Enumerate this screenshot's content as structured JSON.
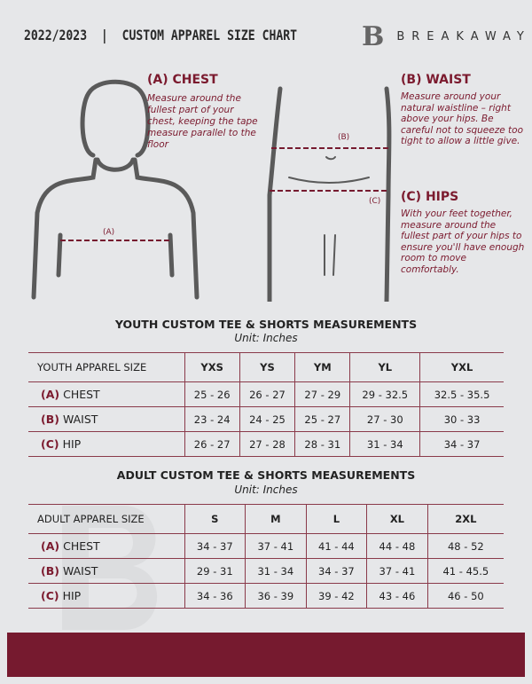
{
  "header": {
    "title": "2022/2023  |  CUSTOM APPAREL SIZE CHART",
    "brand": "BREAKAWAY",
    "logo_letter": "B"
  },
  "chest": {
    "title": "(A) CHEST",
    "text": "Measure around the fullest part of your chest, keeping the tape measure parallel to the floor",
    "marker": "(A)"
  },
  "waist": {
    "title": "(B) WAIST",
    "text": "Measure around your natural waistline – right above your hips. Be careful not to squeeze too tight to allow a little give.",
    "marker": "(B)"
  },
  "hips": {
    "title": "(C) HIPS",
    "text": "With your feet together, measure around the fullest part of your hips to ensure you'll have enough room to move comfortably.",
    "marker": "(C)"
  },
  "colors": {
    "accent": "#761a2f",
    "background": "#e6e7e9"
  },
  "youth": {
    "title": "YOUTH CUSTOM TEE & SHORTS MEASUREMENTS",
    "unit": "Unit: Inches",
    "header": "YOUTH APPAREL SIZE",
    "sizes": [
      "YXS",
      "YS",
      "YM",
      "YL",
      "YXL"
    ],
    "rows": [
      {
        "tag": "(A)",
        "label": "CHEST",
        "values": [
          "25 - 26",
          "26 - 27",
          "27 - 29",
          "29 - 32.5",
          "32.5 - 35.5"
        ]
      },
      {
        "tag": "(B)",
        "label": "WAIST",
        "values": [
          "23 - 24",
          "24 - 25",
          "25 - 27",
          "27 - 30",
          "30 - 33"
        ]
      },
      {
        "tag": "(C)",
        "label": "HIP",
        "values": [
          "26 - 27",
          "27 - 28",
          "28 - 31",
          "31 - 34",
          "34 - 37"
        ]
      }
    ]
  },
  "adult": {
    "title": "ADULT CUSTOM TEE & SHORTS MEASUREMENTS",
    "unit": "Unit: Inches",
    "header": "ADULT APPAREL SIZE",
    "sizes": [
      "S",
      "M",
      "L",
      "XL",
      "2XL"
    ],
    "rows": [
      {
        "tag": "(A)",
        "label": "CHEST",
        "values": [
          "34 - 37",
          "37 - 41",
          "41 - 44",
          "44 - 48",
          "48 - 52"
        ]
      },
      {
        "tag": "(B)",
        "label": "WAIST",
        "values": [
          "29 - 31",
          "31 - 34",
          "34 - 37",
          "37 - 41",
          "41 - 45.5"
        ]
      },
      {
        "tag": "(C)",
        "label": "HIP",
        "values": [
          "34 - 36",
          "36 - 39",
          "39 - 42",
          "43 - 46",
          "46 - 50"
        ]
      }
    ]
  }
}
